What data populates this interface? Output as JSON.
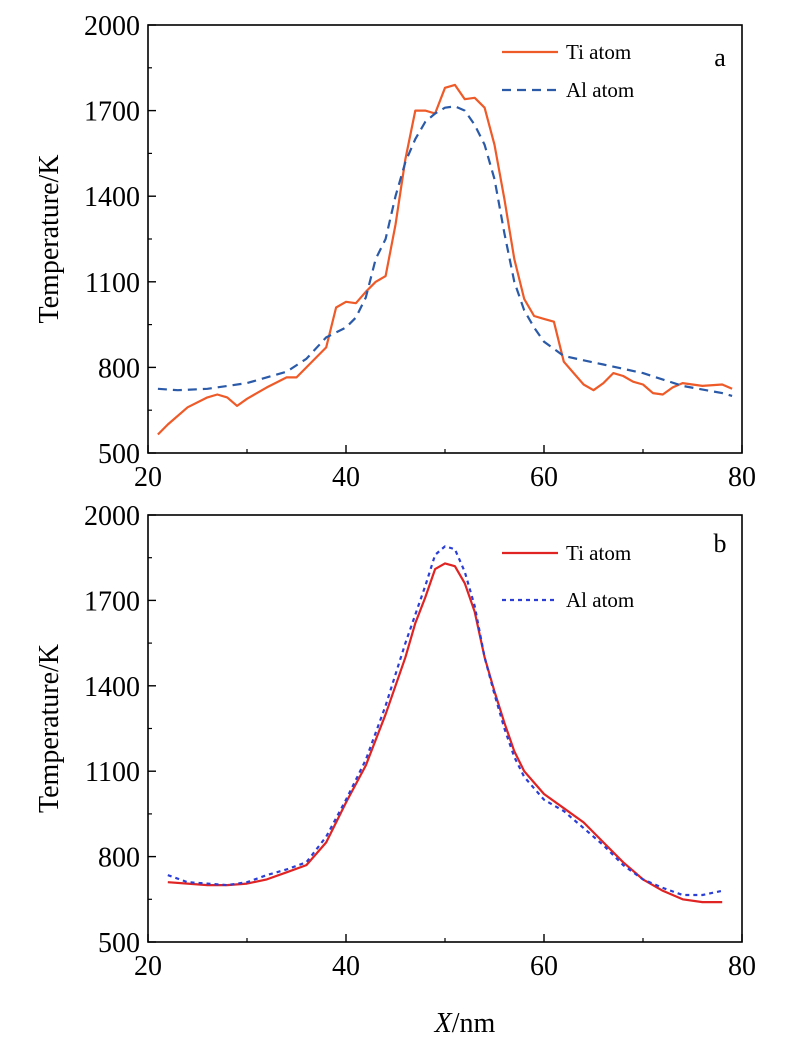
{
  "figure": {
    "xlabel_italic": "X",
    "xlabel_rest": "/nm"
  },
  "chart_data": [
    {
      "type": "line",
      "panel": "a",
      "xlabel": "X/nm",
      "ylabel": "Temperature/K",
      "xlim": [
        20,
        80
      ],
      "ylim": [
        500,
        2000
      ],
      "xticks": [
        20,
        40,
        60,
        80
      ],
      "yticks": [
        500,
        800,
        1100,
        1400,
        1700,
        2000
      ],
      "legend_position": "top-right",
      "grid": false,
      "series": [
        {
          "name": "Ti atom",
          "color": "#ee5a28",
          "style": "solid",
          "points": [
            [
              21,
              565
            ],
            [
              22,
              600
            ],
            [
              24,
              660
            ],
            [
              26,
              695
            ],
            [
              27,
              705
            ],
            [
              28,
              695
            ],
            [
              29,
              665
            ],
            [
              30,
              690
            ],
            [
              32,
              730
            ],
            [
              34,
              765
            ],
            [
              35,
              765
            ],
            [
              36,
              800
            ],
            [
              38,
              870
            ],
            [
              39,
              1010
            ],
            [
              40,
              1030
            ],
            [
              41,
              1025
            ],
            [
              42,
              1065
            ],
            [
              43,
              1100
            ],
            [
              44,
              1120
            ],
            [
              45,
              1300
            ],
            [
              46,
              1530
            ],
            [
              47,
              1700
            ],
            [
              48,
              1700
            ],
            [
              49,
              1690
            ],
            [
              50,
              1780
            ],
            [
              51,
              1790
            ],
            [
              52,
              1740
            ],
            [
              53,
              1745
            ],
            [
              54,
              1710
            ],
            [
              55,
              1580
            ],
            [
              56,
              1390
            ],
            [
              57,
              1180
            ],
            [
              58,
              1040
            ],
            [
              59,
              980
            ],
            [
              60,
              970
            ],
            [
              61,
              960
            ],
            [
              62,
              820
            ],
            [
              63,
              780
            ],
            [
              64,
              740
            ],
            [
              65,
              720
            ],
            [
              66,
              745
            ],
            [
              67,
              780
            ],
            [
              68,
              770
            ],
            [
              69,
              750
            ],
            [
              70,
              740
            ],
            [
              71,
              710
            ],
            [
              72,
              705
            ],
            [
              73,
              730
            ],
            [
              74,
              745
            ],
            [
              76,
              735
            ],
            [
              78,
              740
            ],
            [
              79,
              725
            ]
          ]
        },
        {
          "name": "Al atom",
          "color": "#2a5aa8",
          "style": "dashed",
          "points": [
            [
              21,
              725
            ],
            [
              23,
              720
            ],
            [
              26,
              725
            ],
            [
              30,
              745
            ],
            [
              34,
              785
            ],
            [
              36,
              830
            ],
            [
              38,
              905
            ],
            [
              40,
              940
            ],
            [
              41,
              975
            ],
            [
              42,
              1045
            ],
            [
              43,
              1180
            ],
            [
              44,
              1250
            ],
            [
              45,
              1400
            ],
            [
              46,
              1520
            ],
            [
              47,
              1600
            ],
            [
              48,
              1660
            ],
            [
              49,
              1690
            ],
            [
              50,
              1710
            ],
            [
              51,
              1715
            ],
            [
              52,
              1700
            ],
            [
              53,
              1650
            ],
            [
              54,
              1580
            ],
            [
              55,
              1460
            ],
            [
              56,
              1270
            ],
            [
              57,
              1100
            ],
            [
              58,
              1000
            ],
            [
              59,
              940
            ],
            [
              60,
              890
            ],
            [
              62,
              840
            ],
            [
              64,
              825
            ],
            [
              66,
              810
            ],
            [
              70,
              780
            ],
            [
              74,
              735
            ],
            [
              78,
              710
            ],
            [
              79,
              700
            ]
          ]
        }
      ]
    },
    {
      "type": "line",
      "panel": "b",
      "xlabel": "X/nm",
      "ylabel": "Temperature/K",
      "xlim": [
        20,
        80
      ],
      "ylim": [
        500,
        2000
      ],
      "xticks": [
        20,
        40,
        60,
        80
      ],
      "yticks": [
        500,
        800,
        1100,
        1400,
        1700,
        2000
      ],
      "legend_position": "top-right",
      "grid": false,
      "series": [
        {
          "name": "Ti atom",
          "color": "#e02323",
          "style": "solid",
          "points": [
            [
              22,
              710
            ],
            [
              24,
              705
            ],
            [
              26,
              700
            ],
            [
              28,
              700
            ],
            [
              30,
              705
            ],
            [
              32,
              720
            ],
            [
              34,
              745
            ],
            [
              36,
              770
            ],
            [
              38,
              850
            ],
            [
              40,
              990
            ],
            [
              42,
              1120
            ],
            [
              44,
              1300
            ],
            [
              46,
              1500
            ],
            [
              47,
              1620
            ],
            [
              48,
              1710
            ],
            [
              49,
              1810
            ],
            [
              50,
              1830
            ],
            [
              51,
              1820
            ],
            [
              52,
              1760
            ],
            [
              53,
              1660
            ],
            [
              54,
              1500
            ],
            [
              55,
              1380
            ],
            [
              56,
              1270
            ],
            [
              57,
              1170
            ],
            [
              58,
              1100
            ],
            [
              59,
              1060
            ],
            [
              60,
              1020
            ],
            [
              62,
              970
            ],
            [
              64,
              920
            ],
            [
              66,
              850
            ],
            [
              68,
              780
            ],
            [
              70,
              720
            ],
            [
              72,
              680
            ],
            [
              74,
              650
            ],
            [
              76,
              640
            ],
            [
              78,
              640
            ]
          ]
        },
        {
          "name": "Al atom",
          "color": "#2b3fd6",
          "style": "dotted",
          "points": [
            [
              22,
              735
            ],
            [
              24,
              710
            ],
            [
              26,
              705
            ],
            [
              28,
              700
            ],
            [
              30,
              710
            ],
            [
              32,
              735
            ],
            [
              34,
              755
            ],
            [
              36,
              780
            ],
            [
              38,
              870
            ],
            [
              40,
              1000
            ],
            [
              42,
              1140
            ],
            [
              44,
              1330
            ],
            [
              46,
              1550
            ],
            [
              47,
              1650
            ],
            [
              48,
              1750
            ],
            [
              49,
              1860
            ],
            [
              50,
              1890
            ],
            [
              51,
              1880
            ],
            [
              52,
              1800
            ],
            [
              53,
              1680
            ],
            [
              54,
              1500
            ],
            [
              55,
              1370
            ],
            [
              56,
              1250
            ],
            [
              57,
              1150
            ],
            [
              58,
              1080
            ],
            [
              59,
              1040
            ],
            [
              60,
              1000
            ],
            [
              62,
              960
            ],
            [
              64,
              900
            ],
            [
              66,
              840
            ],
            [
              68,
              770
            ],
            [
              70,
              720
            ],
            [
              72,
              690
            ],
            [
              74,
              665
            ],
            [
              76,
              665
            ],
            [
              78,
              680
            ]
          ]
        }
      ]
    }
  ]
}
